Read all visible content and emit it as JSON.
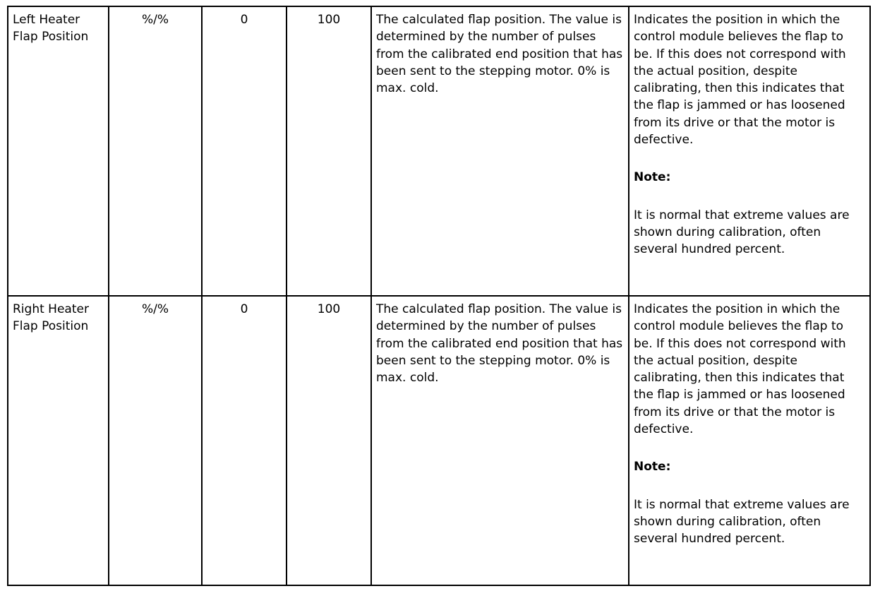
{
  "rows": [
    {
      "name": "Left Heater Flap Position",
      "unit": "%/%",
      "min": "0",
      "max": "100",
      "description": "The calculated flap position. The value is determined by the number of pulses from the calibrated end position that has been sent to the stepping motor. 0% is max. cold.",
      "diagnosis": "Indicates the position in which the control module believes the flap to be. If this does not correspond with the actual position, despite calibrating, then this indicates that the flap is jammed or has loosened from its drive or that the motor is defective.",
      "note_label": "Note:",
      "note": "It is normal that extreme values are shown during calibration, often several hundred percent."
    },
    {
      "name": "Right Heater Flap Position",
      "unit": "%/%",
      "min": "0",
      "max": "100",
      "description": "The calculated flap position. The value is determined by the number of pulses from the calibrated end position that has been sent to the stepping motor. 0% is max. cold.",
      "diagnosis": "Indicates the position in which the control module believes the flap to be. If this does not correspond with the actual position, despite calibrating, then this indicates that the flap is jammed or has loosened from its drive or that the motor is defective.",
      "note_label": "Note:",
      "note": "It is normal that extreme values are shown during calibration, often several hundred percent."
    }
  ]
}
